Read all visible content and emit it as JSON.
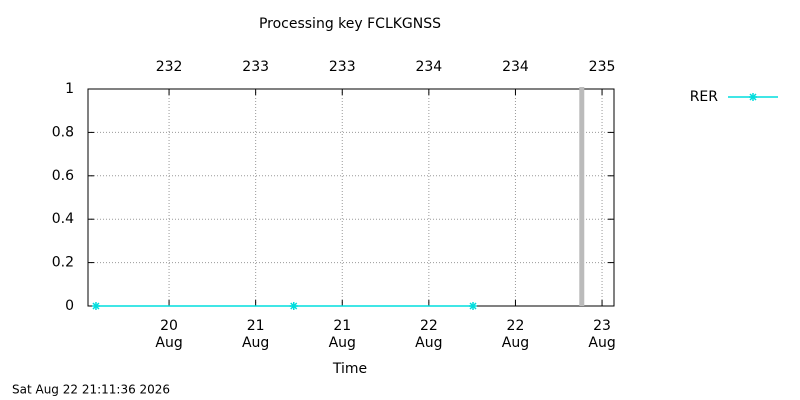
{
  "chart_data": {
    "type": "line",
    "title": "Processing key FCLKGNSS",
    "xlabel": "Time",
    "timestamp": "Sat Aug 22 21:11:36 2026",
    "x": [
      232.078,
      233.22,
      234.255
    ],
    "series": [
      {
        "name": "RER",
        "color": "#00dddd",
        "values": [
          0,
          0,
          0
        ]
      }
    ],
    "xlim": [
      232.032,
      235.069
    ],
    "xticks": [
      {
        "value": 232.5,
        "label": "20 Aug"
      },
      {
        "value": 233,
        "label": "21 Aug"
      },
      {
        "value": 233.5,
        "label": "21 Aug"
      },
      {
        "value": 234,
        "label": "22 Aug"
      },
      {
        "value": 234.5,
        "label": "22 Aug"
      },
      {
        "value": 235,
        "label": "23 Aug"
      }
    ],
    "x2ticks": [
      {
        "value": 232.5,
        "label": "232"
      },
      {
        "value": 233,
        "label": "233"
      },
      {
        "value": 233.5,
        "label": "233"
      },
      {
        "value": 234,
        "label": "234"
      },
      {
        "value": 234.5,
        "label": "234"
      },
      {
        "value": 235,
        "label": "235"
      }
    ],
    "ylim": [
      0,
      1
    ],
    "yticks": [
      0,
      0.2,
      0.4,
      0.6,
      0.8,
      1
    ],
    "now_marker": 234.883,
    "now_marker_color": "#bbbbbb",
    "grid": true,
    "legend": "outside-right"
  }
}
